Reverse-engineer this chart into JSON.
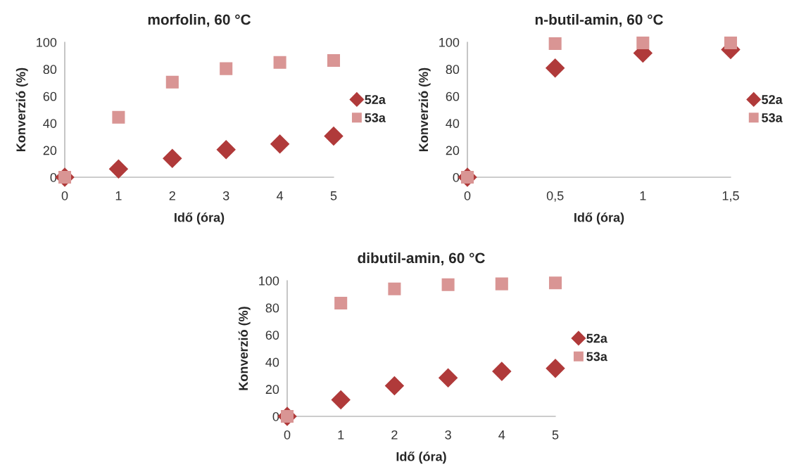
{
  "chart_data": [
    {
      "type": "scatter",
      "title": "morfolin, 60 °C",
      "xlabel": "Idő (óra)",
      "ylabel": "Konverzió (%)",
      "xlim": [
        0,
        5
      ],
      "ylim": [
        0,
        100
      ],
      "xticks": [
        0,
        1,
        2,
        3,
        4,
        5
      ],
      "yticks": [
        0,
        20,
        40,
        60,
        80,
        100
      ],
      "grid": false,
      "legend": "right",
      "x": [
        0,
        1,
        2,
        3,
        4,
        5
      ],
      "series": [
        {
          "name": "52a",
          "color": "#b03a3a",
          "marker": "diamond",
          "values": [
            0,
            6.1,
            13.9,
            20.5,
            24.6,
            30.5
          ]
        },
        {
          "name": "53a",
          "color": "#d99594",
          "marker": "square",
          "values": [
            0,
            44.4,
            70.4,
            80.4,
            85,
            86.5
          ]
        }
      ]
    },
    {
      "type": "scatter",
      "title": "n-butil-amin, 60 °C",
      "xlabel": "Idő (óra)",
      "ylabel": "Konverzió (%)",
      "xlim": [
        0,
        1.5
      ],
      "ylim": [
        0,
        100
      ],
      "xticks": [
        0,
        {
          "value": 0.5,
          "label": "0,5"
        },
        1,
        {
          "value": 1.5,
          "label": "1,5"
        }
      ],
      "yticks": [
        0,
        20,
        40,
        60,
        80,
        100
      ],
      "grid": false,
      "legend": "right",
      "x": [
        0,
        0.5,
        1,
        1.5
      ],
      "series": [
        {
          "name": "52a",
          "color": "#b03a3a",
          "marker": "diamond",
          "values": [
            0,
            80.8,
            91.9,
            94.5
          ]
        },
        {
          "name": "53a",
          "color": "#d99594",
          "marker": "square",
          "values": [
            0,
            99,
            99.5,
            99.5
          ]
        }
      ]
    },
    {
      "type": "scatter",
      "title": "dibutil-amin, 60 °C",
      "xlabel": "Idő (óra)",
      "ylabel": "Konverzió (%)",
      "xlim": [
        0,
        5
      ],
      "ylim": [
        0,
        100
      ],
      "xticks": [
        0,
        1,
        2,
        3,
        4,
        5
      ],
      "yticks": [
        0,
        20,
        40,
        60,
        80,
        100
      ],
      "grid": false,
      "legend": "right",
      "x": [
        0,
        1,
        2,
        3,
        4,
        5
      ],
      "series": [
        {
          "name": "52a",
          "color": "#b03a3a",
          "marker": "diamond",
          "values": [
            0,
            12.2,
            22.5,
            28.4,
            33.1,
            35.4
          ]
        },
        {
          "name": "53a",
          "color": "#d99594",
          "marker": "square",
          "values": [
            0,
            83.4,
            93.9,
            97,
            97.6,
            98.3
          ]
        }
      ]
    }
  ]
}
